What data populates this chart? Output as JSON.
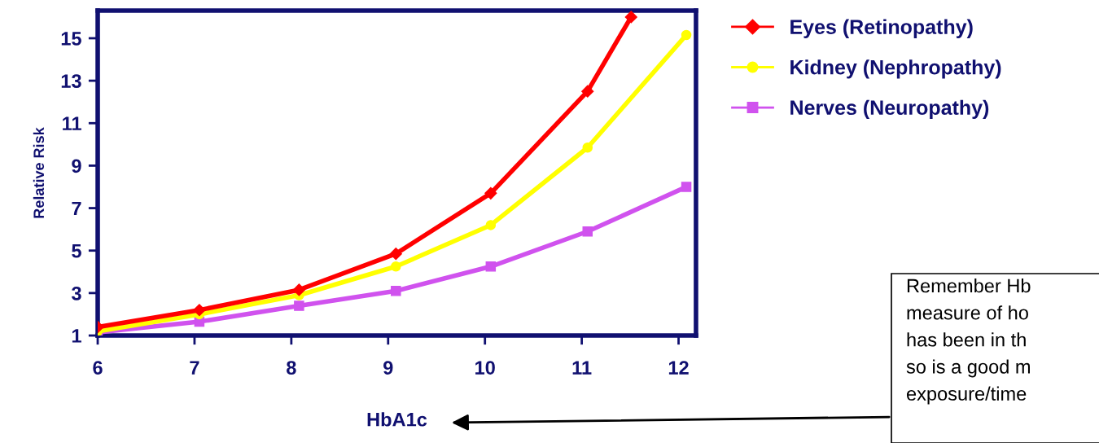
{
  "chart_data": {
    "type": "line",
    "xlabel": "HbA1c",
    "ylabel": "Relative Risk",
    "xlim": [
      6,
      12.18
    ],
    "xticks": [
      6,
      7,
      8,
      9,
      10,
      11,
      12
    ],
    "ylim": [
      1,
      16.3
    ],
    "yticks": [
      1,
      3,
      5,
      7,
      9,
      11,
      13,
      15
    ],
    "grid": false,
    "legend": "right",
    "series": [
      {
        "name": "Eyes (Retinopathy)",
        "color": "#ff0000",
        "marker": "diamond",
        "x": [
          6,
          7.05,
          8.08,
          9.08,
          10.06,
          11.06,
          11.51
        ],
        "values": [
          1.4,
          2.2,
          3.15,
          4.85,
          7.7,
          12.5,
          16.0
        ]
      },
      {
        "name": "Kidney (Nephropathy)",
        "color": "#ffff00",
        "marker": "circle",
        "x": [
          6,
          7.05,
          8.08,
          9.08,
          10.06,
          11.06,
          12.08
        ],
        "values": [
          1.2,
          2.0,
          2.9,
          4.25,
          6.2,
          9.85,
          15.15
        ]
      },
      {
        "name": "Nerves (Neuropathy)",
        "color": "#d052ee",
        "marker": "square",
        "x": [
          6,
          7.05,
          8.08,
          9.08,
          10.06,
          11.06,
          12.08
        ],
        "values": [
          1.15,
          1.65,
          2.4,
          3.1,
          4.25,
          5.9,
          8.0
        ]
      }
    ],
    "annotations": [
      "Remember Hb\nmeasure of ho\nhas been in th\nso is a good m\nexposure/time"
    ]
  }
}
